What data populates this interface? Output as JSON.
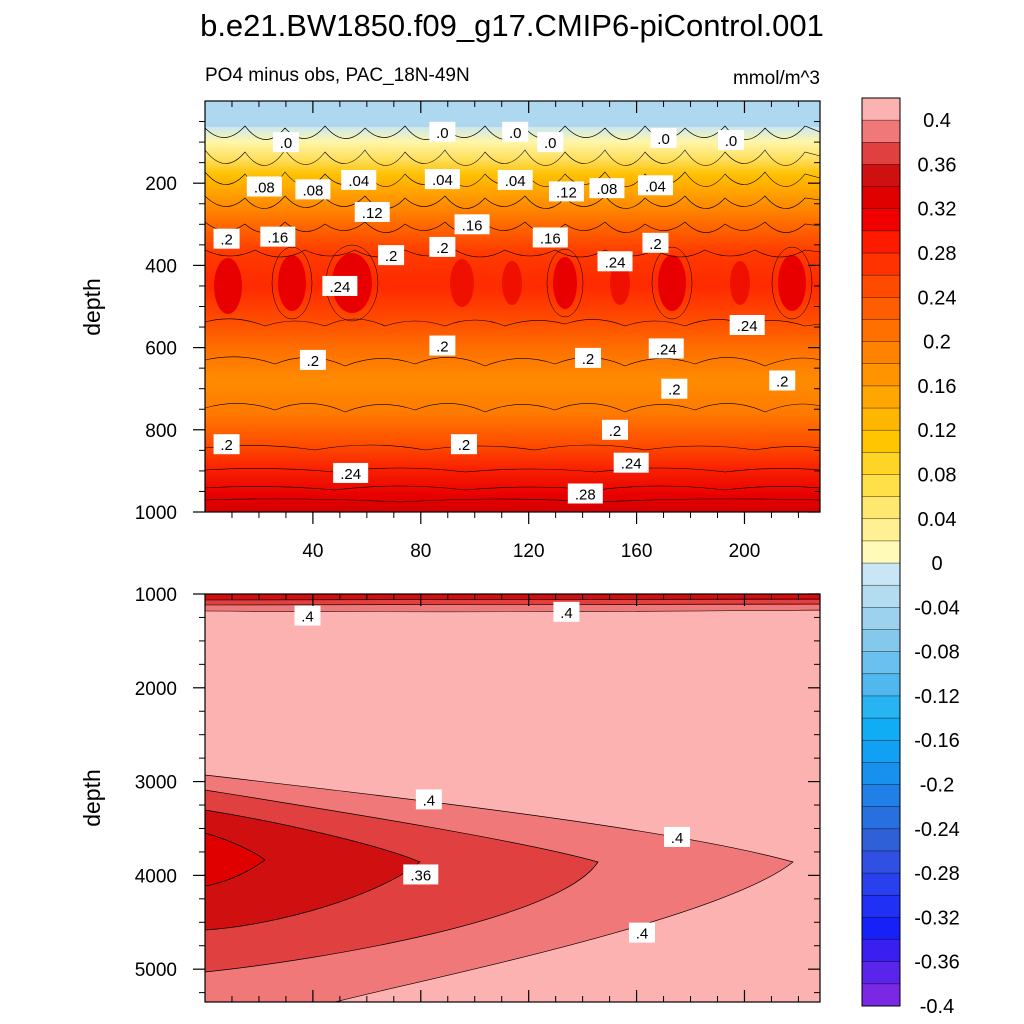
{
  "title": "b.e21.BW1850.f09_g17.CMIP6-piControl.001",
  "chart_data": [
    {
      "type": "heatmap",
      "panel": "top",
      "subtitle_left": "PO4 minus obs, PAC_18N-49N",
      "subtitle_right": "mmol/m^3",
      "ylabel": "depth",
      "xlabel": "",
      "xlim": [
        0,
        228
      ],
      "ylim": [
        0,
        1000
      ],
      "y_reversed": true,
      "xticks": [
        "40",
        "80",
        "120",
        "160",
        "200"
      ],
      "yticks": [
        "200",
        "400",
        "600",
        "800",
        "1000"
      ],
      "xtick_values": [
        40,
        80,
        120,
        160,
        200
      ],
      "ytick_values": [
        200,
        400,
        600,
        800,
        1000
      ],
      "contour_labels": [
        {
          "text": ".0",
          "x": 30,
          "y": 100
        },
        {
          "text": ".0",
          "x": 88,
          "y": 75
        },
        {
          "text": ".0",
          "x": 115,
          "y": 75
        },
        {
          "text": ".0",
          "x": 128,
          "y": 100
        },
        {
          "text": ".0",
          "x": 170,
          "y": 90
        },
        {
          "text": ".0",
          "x": 195,
          "y": 95
        },
        {
          "text": ".08",
          "x": 22,
          "y": 208
        },
        {
          "text": ".08",
          "x": 40,
          "y": 215
        },
        {
          "text": ".04",
          "x": 57,
          "y": 192
        },
        {
          "text": ".04",
          "x": 88,
          "y": 190
        },
        {
          "text": ".04",
          "x": 115,
          "y": 192
        },
        {
          "text": ".12",
          "x": 134,
          "y": 220
        },
        {
          "text": ".08",
          "x": 149,
          "y": 212
        },
        {
          "text": ".04",
          "x": 167,
          "y": 205
        },
        {
          "text": ".12",
          "x": 62,
          "y": 270
        },
        {
          "text": ".16",
          "x": 99,
          "y": 300
        },
        {
          "text": ".16",
          "x": 128,
          "y": 332
        },
        {
          "text": ".2",
          "x": 8,
          "y": 335
        },
        {
          "text": ".16",
          "x": 27,
          "y": 330
        },
        {
          "text": ".2",
          "x": 69,
          "y": 375
        },
        {
          "text": ".2",
          "x": 88,
          "y": 355
        },
        {
          "text": ".24",
          "x": 152,
          "y": 390
        },
        {
          "text": ".2",
          "x": 167,
          "y": 345
        },
        {
          "text": ".24",
          "x": 50,
          "y": 450
        },
        {
          "text": ".24",
          "x": 201,
          "y": 545
        },
        {
          "text": ".2",
          "x": 40,
          "y": 630
        },
        {
          "text": ".2",
          "x": 88,
          "y": 595
        },
        {
          "text": ".2",
          "x": 142,
          "y": 625
        },
        {
          "text": ".24",
          "x": 171,
          "y": 602
        },
        {
          "text": ".2",
          "x": 174,
          "y": 700
        },
        {
          "text": ".2",
          "x": 214,
          "y": 680
        },
        {
          "text": ".2",
          "x": 152,
          "y": 800
        },
        {
          "text": ".2",
          "x": 96,
          "y": 835
        },
        {
          "text": ".2",
          "x": 8,
          "y": 835
        },
        {
          "text": ".24",
          "x": 54,
          "y": 905
        },
        {
          "text": ".24",
          "x": 158,
          "y": 880
        },
        {
          "text": ".28",
          "x": 141,
          "y": 955
        }
      ]
    },
    {
      "type": "heatmap",
      "panel": "bottom",
      "ylabel": "depth",
      "xlabel": "",
      "xlim": [
        0,
        228
      ],
      "ylim": [
        1000,
        5350
      ],
      "y_reversed": true,
      "yticks": [
        "1000",
        "2000",
        "3000",
        "4000",
        "5000"
      ],
      "ytick_values": [
        1000,
        2000,
        3000,
        4000,
        5000
      ],
      "contour_labels": [
        {
          "text": ".4",
          "x": 38,
          "y": 1230
        },
        {
          "text": ".4",
          "x": 134,
          "y": 1190
        },
        {
          "text": ".4",
          "x": 83,
          "y": 3190
        },
        {
          "text": ".4",
          "x": 175,
          "y": 3590
        },
        {
          "text": ".36",
          "x": 80,
          "y": 3990
        },
        {
          "text": ".4",
          "x": 162,
          "y": 4610
        }
      ]
    }
  ],
  "colorbar": {
    "labels": [
      "0.4",
      "0.36",
      "0.32",
      "0.28",
      "0.24",
      "0.2",
      "0.16",
      "0.12",
      "0.08",
      "0.04",
      "0",
      "-0.04",
      "-0.08",
      "-0.12",
      "-0.16",
      "-0.2",
      "-0.24",
      "-0.28",
      "-0.32",
      "-0.36",
      "-0.4"
    ],
    "colors_top_to_bottom": [
      "#fdb2b2",
      "#f07878",
      "#e04040",
      "#d01010",
      "#e00000",
      "#f00000",
      "#ff1a00",
      "#ff3200",
      "#ff4a00",
      "#ff5e00",
      "#ff7000",
      "#ff8200",
      "#ff9400",
      "#ffa600",
      "#ffb600",
      "#ffc600",
      "#ffd424",
      "#ffe048",
      "#ffe870",
      "#fff094",
      "#fffab8",
      "#c8e6f6",
      "#b4dcf0",
      "#9cd2ee",
      "#84c8ec",
      "#6ac0ee",
      "#50b8ef",
      "#28b4f2",
      "#10acf4",
      "#10a0f4",
      "#1890ee",
      "#2080e8",
      "#2870e0",
      "#3060d8",
      "#3050e4",
      "#2840ee",
      "#2030f4",
      "#1820f8",
      "#3a20f0",
      "#5a24ea",
      "#7a28e4"
    ]
  }
}
